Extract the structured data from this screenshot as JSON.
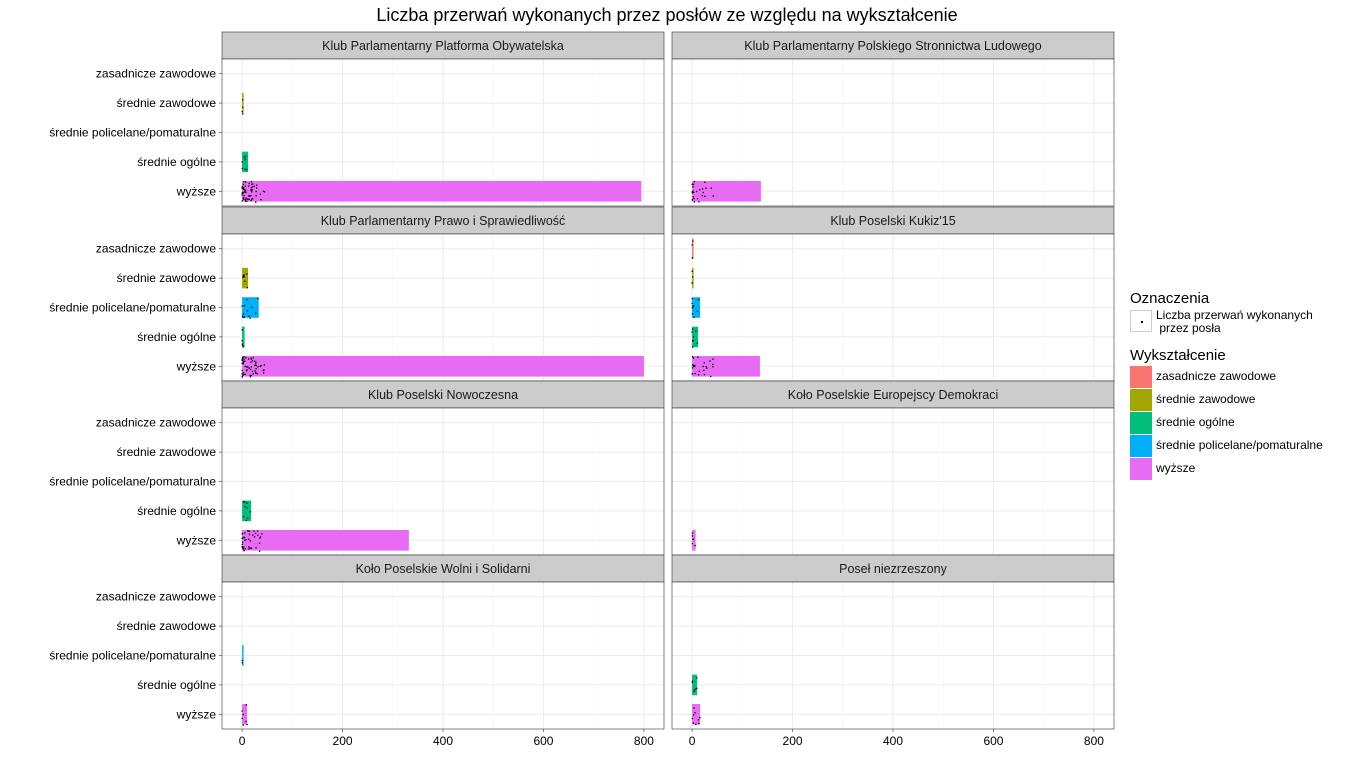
{
  "chart_data": {
    "type": "bar",
    "title": "Liczba przerwań wykonanych przez posłów ze względu na wykształcenie",
    "orientation": "horizontal",
    "categories": [
      "zasadnicze zawodowe",
      "średnie zawodowe",
      "średnie policelane/pomaturalne",
      "średnie ogólne",
      "wyższe"
    ],
    "category_colors": {
      "zasadnicze zawodowe": "#F8766D",
      "średnie zawodowe": "#A3A500",
      "średnie ogólne": "#00BF7D",
      "średnie policelane/pomaturalne": "#00B0F6",
      "wyższe": "#E76BF3"
    },
    "xlim": [
      -40,
      840
    ],
    "x_ticks": [
      0,
      200,
      400,
      600,
      800
    ],
    "grid": true,
    "facets": [
      {
        "name": "Klub Parlamentarny Platforma Obywatelska",
        "values": {
          "zasadnicze zawodowe": 0,
          "średnie zawodowe": 3,
          "średnie policelane/pomaturalne": 0,
          "średnie ogólne": 12,
          "wyższe": 795
        }
      },
      {
        "name": "Klub Parlamentarny Polskiego Stronnictwa Ludowego",
        "values": {
          "zasadnicze zawodowe": 0,
          "średnie zawodowe": 0,
          "średnie policelane/pomaturalne": 0,
          "średnie ogólne": 0,
          "wyższe": 137
        }
      },
      {
        "name": "Klub Parlamentarny Prawo i Sprawiedliwość",
        "values": {
          "zasadnicze zawodowe": 0,
          "średnie zawodowe": 12,
          "średnie policelane/pomaturalne": 33,
          "średnie ogólne": 5,
          "wyższe": 800
        }
      },
      {
        "name": "Klub Poselski Kukiz'15",
        "values": {
          "zasadnicze zawodowe": 2,
          "średnie zawodowe": 3,
          "średnie policelane/pomaturalne": 16,
          "średnie ogólne": 12,
          "wyższe": 135
        }
      },
      {
        "name": "Klub Poselski Nowoczesna",
        "values": {
          "zasadnicze zawodowe": 0,
          "średnie zawodowe": 0,
          "średnie policelane/pomaturalne": 0,
          "średnie ogólne": 18,
          "wyższe": 332
        }
      },
      {
        "name": "Koło Poselskie Europejscy Demokraci",
        "values": {
          "zasadnicze zawodowe": 0,
          "średnie zawodowe": 0,
          "średnie policelane/pomaturalne": 0,
          "średnie ogólne": 0,
          "wyższe": 7
        }
      },
      {
        "name": "Koło Poselskie Wolni i Solidarni",
        "values": {
          "zasadnicze zawodowe": 0,
          "średnie zawodowe": 0,
          "średnie policelane/pomaturalne": 1,
          "średnie ogólne": 0,
          "wyższe": 10
        }
      },
      {
        "name": "Poseł niezrzeszony",
        "values": {
          "zasadnicze zawodowe": 0,
          "średnie zawodowe": 0,
          "średnie policelane/pomaturalne": 0,
          "średnie ogólne": 10,
          "wyższe": 16
        }
      }
    ],
    "legend": {
      "placement": "right",
      "point_title": "Oznaczenia",
      "point_label": "Liczba przerwań wykonanych\n przez posła",
      "fill_title": "Wykształcenie",
      "fill_entries": [
        "zasadnicze zawodowe",
        "średnie zawodowe",
        "średnie ogólne",
        "średnie policelane/pomaturalne",
        "wyższe"
      ]
    }
  }
}
